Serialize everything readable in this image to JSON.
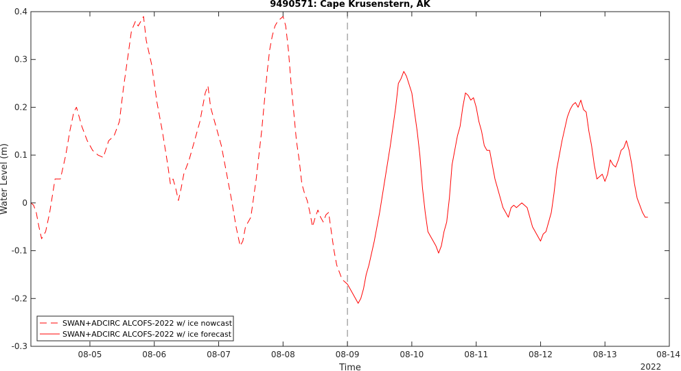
{
  "chart_data": {
    "type": "line",
    "title": "9490571: Cape Krusenstern, AK",
    "xlabel": "Time",
    "ylabel": "Water Level (m)",
    "year_label": "2022",
    "x_range": [
      "2022-08-04 02:00",
      "2022-08-14 00:00"
    ],
    "ylim": [
      -0.3,
      0.4
    ],
    "yticks": [
      -0.3,
      -0.2,
      -0.1,
      0,
      0.1,
      0.2,
      0.3,
      0.4
    ],
    "ytick_labels": [
      "-0.3",
      "-0.2",
      "-0.1",
      "0",
      "0.1",
      "0.2",
      "0.3",
      "0.4"
    ],
    "xticks": [
      "2022-08-05",
      "2022-08-06",
      "2022-08-07",
      "2022-08-08",
      "2022-08-09",
      "2022-08-10",
      "2022-08-11",
      "2022-08-12",
      "2022-08-13",
      "2022-08-14"
    ],
    "xtick_labels": [
      "08-05",
      "08-06",
      "08-07",
      "08-08",
      "08-09",
      "08-10",
      "08-11",
      "08-12",
      "08-13",
      "08-14"
    ],
    "divider_at": "2022-08-09",
    "grid": false,
    "legend_position": "bottom-left",
    "series_color": "#ff0000",
    "series": [
      {
        "name": "SWAN+ADCIRC ALCOFS-2022 w/ ice nowcast",
        "style": "dashed",
        "points": [
          [
            "2022-08-04 02:00",
            0.0
          ],
          [
            "2022-08-04 03:00",
            -0.005
          ],
          [
            "2022-08-04 04:00",
            -0.02
          ],
          [
            "2022-08-04 05:00",
            -0.05
          ],
          [
            "2022-08-04 06:00",
            -0.075
          ],
          [
            "2022-08-04 07:30",
            -0.06
          ],
          [
            "2022-08-04 09:00",
            -0.02
          ],
          [
            "2022-08-04 11:00",
            0.05
          ],
          [
            "2022-08-04 13:00",
            0.05
          ],
          [
            "2022-08-04 15:00",
            0.1
          ],
          [
            "2022-08-04 16:30",
            0.15
          ],
          [
            "2022-08-04 18:00",
            0.19
          ],
          [
            "2022-08-04 19:00",
            0.2
          ],
          [
            "2022-08-04 21:00",
            0.16
          ],
          [
            "2022-08-04 23:00",
            0.13
          ],
          [
            "2022-08-05 01:00",
            0.11
          ],
          [
            "2022-08-05 03:00",
            0.1
          ],
          [
            "2022-08-05 05:00",
            0.095
          ],
          [
            "2022-08-05 07:00",
            0.13
          ],
          [
            "2022-08-05 09:00",
            0.14
          ],
          [
            "2022-08-05 11:00",
            0.17
          ],
          [
            "2022-08-05 12:30",
            0.24
          ],
          [
            "2022-08-05 14:00",
            0.3
          ],
          [
            "2022-08-05 15:30",
            0.36
          ],
          [
            "2022-08-05 17:00",
            0.38
          ],
          [
            "2022-08-05 18:00",
            0.37
          ],
          [
            "2022-08-05 19:00",
            0.38
          ],
          [
            "2022-08-05 20:00",
            0.39
          ],
          [
            "2022-08-05 21:00",
            0.34
          ],
          [
            "2022-08-05 23:00",
            0.29
          ],
          [
            "2022-08-06 01:00",
            0.21
          ],
          [
            "2022-08-06 03:00",
            0.15
          ],
          [
            "2022-08-06 05:00",
            0.08
          ],
          [
            "2022-08-06 06:00",
            0.04
          ],
          [
            "2022-08-06 07:00",
            0.05
          ],
          [
            "2022-08-06 08:00",
            0.03
          ],
          [
            "2022-08-06 09:00",
            0.005
          ],
          [
            "2022-08-06 10:00",
            0.03
          ],
          [
            "2022-08-06 11:00",
            0.06
          ],
          [
            "2022-08-06 13:00",
            0.09
          ],
          [
            "2022-08-06 15:00",
            0.13
          ],
          [
            "2022-08-06 17:00",
            0.17
          ],
          [
            "2022-08-06 19:00",
            0.23
          ],
          [
            "2022-08-06 20:00",
            0.245
          ],
          [
            "2022-08-06 21:00",
            0.2
          ],
          [
            "2022-08-06 23:00",
            0.16
          ],
          [
            "2022-08-07 01:00",
            0.12
          ],
          [
            "2022-08-07 03:00",
            0.06
          ],
          [
            "2022-08-07 05:00",
            0.0
          ],
          [
            "2022-08-07 06:30",
            -0.05
          ],
          [
            "2022-08-07 08:00",
            -0.09
          ],
          [
            "2022-08-07 09:00",
            -0.08
          ],
          [
            "2022-08-07 10:00",
            -0.05
          ],
          [
            "2022-08-07 12:00",
            -0.03
          ],
          [
            "2022-08-07 14:00",
            0.05
          ],
          [
            "2022-08-07 16:00",
            0.15
          ],
          [
            "2022-08-07 18:00",
            0.27
          ],
          [
            "2022-08-07 19:00",
            0.32
          ],
          [
            "2022-08-07 20:00",
            0.35
          ],
          [
            "2022-08-07 21:00",
            0.37
          ],
          [
            "2022-08-07 22:00",
            0.38
          ],
          [
            "2022-08-08 00:00",
            0.39
          ],
          [
            "2022-08-08 01:00",
            0.37
          ],
          [
            "2022-08-08 02:00",
            0.32
          ],
          [
            "2022-08-08 03:00",
            0.25
          ],
          [
            "2022-08-08 04:00",
            0.19
          ],
          [
            "2022-08-08 05:00",
            0.13
          ],
          [
            "2022-08-08 06:00",
            0.09
          ],
          [
            "2022-08-08 07:00",
            0.04
          ],
          [
            "2022-08-08 08:00",
            0.02
          ],
          [
            "2022-08-08 09:00",
            0.005
          ],
          [
            "2022-08-08 10:00",
            -0.02
          ],
          [
            "2022-08-08 11:00",
            -0.05
          ],
          [
            "2022-08-08 12:00",
            -0.03
          ],
          [
            "2022-08-08 13:00",
            -0.015
          ],
          [
            "2022-08-08 14:00",
            -0.03
          ],
          [
            "2022-08-08 15:00",
            -0.04
          ],
          [
            "2022-08-08 16:00",
            -0.025
          ],
          [
            "2022-08-08 17:00",
            -0.02
          ],
          [
            "2022-08-08 18:00",
            -0.06
          ],
          [
            "2022-08-08 19:00",
            -0.1
          ],
          [
            "2022-08-08 20:00",
            -0.13
          ],
          [
            "2022-08-08 21:00",
            -0.145
          ],
          [
            "2022-08-08 22:00",
            -0.16
          ],
          [
            "2022-08-08 23:00",
            -0.165
          ],
          [
            "2022-08-09 00:00",
            -0.17
          ]
        ]
      },
      {
        "name": "SWAN+ADCIRC ALCOFS-2022 w/ ice forecast",
        "style": "solid",
        "points": [
          [
            "2022-08-09 00:00",
            -0.17
          ],
          [
            "2022-08-09 01:00",
            -0.18
          ],
          [
            "2022-08-09 02:00",
            -0.19
          ],
          [
            "2022-08-09 03:00",
            -0.2
          ],
          [
            "2022-08-09 04:00",
            -0.21
          ],
          [
            "2022-08-09 05:00",
            -0.2
          ],
          [
            "2022-08-09 06:00",
            -0.18
          ],
          [
            "2022-08-09 07:00",
            -0.15
          ],
          [
            "2022-08-09 08:00",
            -0.13
          ],
          [
            "2022-08-09 10:00",
            -0.08
          ],
          [
            "2022-08-09 12:00",
            -0.02
          ],
          [
            "2022-08-09 14:00",
            0.05
          ],
          [
            "2022-08-09 16:00",
            0.12
          ],
          [
            "2022-08-09 18:00",
            0.2
          ],
          [
            "2022-08-09 19:00",
            0.25
          ],
          [
            "2022-08-09 20:00",
            0.26
          ],
          [
            "2022-08-09 21:00",
            0.275
          ],
          [
            "2022-08-09 22:00",
            0.265
          ],
          [
            "2022-08-10 00:00",
            0.23
          ],
          [
            "2022-08-10 02:00",
            0.15
          ],
          [
            "2022-08-10 03:00",
            0.1
          ],
          [
            "2022-08-10 04:00",
            0.03
          ],
          [
            "2022-08-10 05:00",
            -0.02
          ],
          [
            "2022-08-10 06:00",
            -0.06
          ],
          [
            "2022-08-10 07:00",
            -0.07
          ],
          [
            "2022-08-10 08:00",
            -0.08
          ],
          [
            "2022-08-10 09:00",
            -0.09
          ],
          [
            "2022-08-10 10:00",
            -0.105
          ],
          [
            "2022-08-10 11:00",
            -0.09
          ],
          [
            "2022-08-10 12:00",
            -0.06
          ],
          [
            "2022-08-10 13:00",
            -0.04
          ],
          [
            "2022-08-10 14:00",
            0.01
          ],
          [
            "2022-08-10 15:00",
            0.08
          ],
          [
            "2022-08-10 16:00",
            0.11
          ],
          [
            "2022-08-10 17:00",
            0.14
          ],
          [
            "2022-08-10 18:00",
            0.16
          ],
          [
            "2022-08-10 19:00",
            0.2
          ],
          [
            "2022-08-10 20:00",
            0.23
          ],
          [
            "2022-08-10 21:00",
            0.225
          ],
          [
            "2022-08-10 22:00",
            0.215
          ],
          [
            "2022-08-10 23:00",
            0.22
          ],
          [
            "2022-08-11 00:00",
            0.2
          ],
          [
            "2022-08-11 01:00",
            0.17
          ],
          [
            "2022-08-11 02:00",
            0.15
          ],
          [
            "2022-08-11 03:00",
            0.12
          ],
          [
            "2022-08-11 04:00",
            0.11
          ],
          [
            "2022-08-11 05:00",
            0.11
          ],
          [
            "2022-08-11 06:00",
            0.08
          ],
          [
            "2022-08-11 07:00",
            0.05
          ],
          [
            "2022-08-11 08:00",
            0.03
          ],
          [
            "2022-08-11 09:00",
            0.01
          ],
          [
            "2022-08-11 10:00",
            -0.01
          ],
          [
            "2022-08-11 11:00",
            -0.02
          ],
          [
            "2022-08-11 12:00",
            -0.03
          ],
          [
            "2022-08-11 13:00",
            -0.01
          ],
          [
            "2022-08-11 14:00",
            -0.005
          ],
          [
            "2022-08-11 15:00",
            -0.01
          ],
          [
            "2022-08-11 16:00",
            -0.005
          ],
          [
            "2022-08-11 17:00",
            0.0
          ],
          [
            "2022-08-11 18:00",
            -0.005
          ],
          [
            "2022-08-11 19:00",
            -0.01
          ],
          [
            "2022-08-11 20:00",
            -0.03
          ],
          [
            "2022-08-11 21:00",
            -0.05
          ],
          [
            "2022-08-11 22:00",
            -0.06
          ],
          [
            "2022-08-11 23:00",
            -0.07
          ],
          [
            "2022-08-12 00:00",
            -0.08
          ],
          [
            "2022-08-12 01:00",
            -0.065
          ],
          [
            "2022-08-12 02:00",
            -0.06
          ],
          [
            "2022-08-12 03:00",
            -0.04
          ],
          [
            "2022-08-12 04:00",
            -0.02
          ],
          [
            "2022-08-12 05:00",
            0.02
          ],
          [
            "2022-08-12 06:00",
            0.07
          ],
          [
            "2022-08-12 08:00",
            0.13
          ],
          [
            "2022-08-12 10:00",
            0.18
          ],
          [
            "2022-08-12 11:00",
            0.195
          ],
          [
            "2022-08-12 12:00",
            0.205
          ],
          [
            "2022-08-12 13:00",
            0.21
          ],
          [
            "2022-08-12 14:00",
            0.2
          ],
          [
            "2022-08-12 15:00",
            0.215
          ],
          [
            "2022-08-12 16:00",
            0.195
          ],
          [
            "2022-08-12 17:00",
            0.19
          ],
          [
            "2022-08-12 18:00",
            0.15
          ],
          [
            "2022-08-12 19:00",
            0.12
          ],
          [
            "2022-08-12 20:00",
            0.08
          ],
          [
            "2022-08-12 21:00",
            0.05
          ],
          [
            "2022-08-12 22:00",
            0.055
          ],
          [
            "2022-08-12 23:00",
            0.06
          ],
          [
            "2022-08-13 00:00",
            0.045
          ],
          [
            "2022-08-13 01:00",
            0.06
          ],
          [
            "2022-08-13 02:00",
            0.09
          ],
          [
            "2022-08-13 03:00",
            0.08
          ],
          [
            "2022-08-13 04:00",
            0.075
          ],
          [
            "2022-08-13 05:00",
            0.09
          ],
          [
            "2022-08-13 06:00",
            0.11
          ],
          [
            "2022-08-13 07:00",
            0.115
          ],
          [
            "2022-08-13 08:00",
            0.13
          ],
          [
            "2022-08-13 09:00",
            0.11
          ],
          [
            "2022-08-13 10:00",
            0.08
          ],
          [
            "2022-08-13 11:00",
            0.04
          ],
          [
            "2022-08-13 12:00",
            0.01
          ],
          [
            "2022-08-13 13:00",
            -0.005
          ],
          [
            "2022-08-13 14:00",
            -0.02
          ],
          [
            "2022-08-13 15:00",
            -0.03
          ],
          [
            "2022-08-13 16:00",
            -0.03
          ]
        ]
      }
    ]
  }
}
